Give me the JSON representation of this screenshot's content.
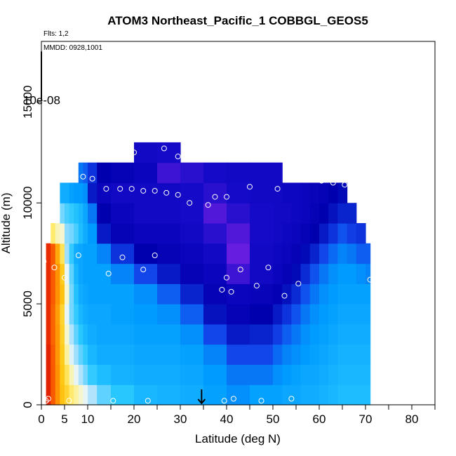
{
  "chart_data": {
    "type": "heatmap",
    "title": "ATOM3 Northeast_Pacific_1 COBBGL_GEOS5",
    "flights_label": "Flts: 1,2",
    "dates_label": "MMDD: 0928,1001",
    "xlabel": "Latitude (deg N)",
    "ylabel": "Altitude (m)",
    "xlim": [
      0,
      85
    ],
    "ylim": [
      0,
      18000
    ],
    "x_ticks": [
      0,
      5,
      10,
      20,
      30,
      40,
      50,
      60,
      70,
      80
    ],
    "x_tick_labels": [
      "0",
      "5",
      "10",
      "20",
      "30",
      "40",
      "50",
      "60",
      "70",
      "80"
    ],
    "x_minor_ticks": [
      15,
      25,
      35,
      45,
      55,
      65,
      75,
      85
    ],
    "y_ticks": [
      0,
      5000,
      10000,
      15000
    ],
    "y_tick_labels": [
      "0",
      "5000",
      "10000",
      "15000"
    ],
    "scale_label": "10e-08",
    "scale_bar_range": [
      15100,
      17500
    ],
    "marker_arrow_latitude": 34.6,
    "columns": [
      {
        "lat0": 1,
        "lat1": 2,
        "top": 8000,
        "values": [
          0.96,
          0.96,
          0.96,
          0.95,
          0.95,
          0.95,
          0.95,
          0.95
        ]
      },
      {
        "lat0": 2,
        "lat1": 3,
        "top": 9000,
        "values": [
          0.9,
          0.9,
          0.9,
          0.89,
          0.89,
          0.9,
          0.9,
          0.9,
          0.66
        ]
      },
      {
        "lat0": 3,
        "lat1": 4,
        "top": 9000,
        "values": [
          0.84,
          0.84,
          0.83,
          0.83,
          0.82,
          0.84,
          0.84,
          0.8,
          0.6
        ]
      },
      {
        "lat0": 4,
        "lat1": 5,
        "top": 11000,
        "values": [
          0.76,
          0.75,
          0.74,
          0.73,
          0.72,
          0.76,
          0.74,
          0.68,
          0.58,
          0.42,
          0.3
        ]
      },
      {
        "lat0": 5,
        "lat1": 6,
        "top": 11000,
        "values": [
          0.72,
          0.68,
          0.62,
          0.58,
          0.54,
          0.58,
          0.54,
          0.46,
          0.44,
          0.38,
          0.3
        ]
      },
      {
        "lat0": 6,
        "lat1": 7,
        "top": 11000,
        "values": [
          0.66,
          0.6,
          0.53,
          0.48,
          0.42,
          0.42,
          0.4,
          0.36,
          0.42,
          0.36,
          0.28
        ]
      },
      {
        "lat0": 7,
        "lat1": 8,
        "top": 11000,
        "values": [
          0.62,
          0.54,
          0.46,
          0.4,
          0.36,
          0.34,
          0.32,
          0.3,
          0.38,
          0.34,
          0.27
        ]
      },
      {
        "lat0": 8,
        "lat1": 9,
        "top": 12000,
        "values": [
          0.58,
          0.48,
          0.4,
          0.35,
          0.32,
          0.3,
          0.29,
          0.29,
          0.33,
          0.32,
          0.27,
          0.24
        ]
      },
      {
        "lat0": 9,
        "lat1": 10,
        "top": 12000,
        "values": [
          0.54,
          0.42,
          0.36,
          0.32,
          0.3,
          0.29,
          0.28,
          0.28,
          0.3,
          0.29,
          0.26,
          0.22
        ]
      },
      {
        "lat0": 10,
        "lat1": 12,
        "top": 12000,
        "values": [
          0.48,
          0.36,
          0.32,
          0.3,
          0.29,
          0.28,
          0.28,
          0.28,
          0.27,
          0.24,
          0.15,
          0.18
        ]
      },
      {
        "lat0": 12,
        "lat1": 15,
        "top": 12000,
        "values": [
          0.4,
          0.33,
          0.3,
          0.29,
          0.29,
          0.28,
          0.28,
          0.25,
          0.15,
          0.12,
          0.08,
          0.12
        ]
      },
      {
        "lat0": 15,
        "lat1": 20,
        "top": 12000,
        "values": [
          0.35,
          0.31,
          0.3,
          0.29,
          0.28,
          0.28,
          0.25,
          0.18,
          0.1,
          0.08,
          0.06,
          0.1
        ]
      },
      {
        "lat0": 20,
        "lat1": 25,
        "top": 13000,
        "values": [
          0.32,
          0.3,
          0.29,
          0.28,
          0.27,
          0.26,
          0.2,
          0.12,
          0.08,
          0.06,
          0.06,
          0.08,
          0.06
        ]
      },
      {
        "lat0": 25,
        "lat1": 30,
        "top": 13000,
        "values": [
          0.31,
          0.3,
          0.29,
          0.28,
          0.26,
          0.22,
          0.15,
          0.1,
          0.08,
          0.06,
          0.06,
          0.03,
          0.05
        ]
      },
      {
        "lat0": 30,
        "lat1": 35,
        "top": 12000,
        "values": [
          0.3,
          0.29,
          0.28,
          0.26,
          0.22,
          0.16,
          0.1,
          0.08,
          0.06,
          0.05,
          0.05,
          0.04
        ]
      },
      {
        "lat0": 35,
        "lat1": 40,
        "top": 12000,
        "values": [
          0.28,
          0.27,
          0.25,
          0.2,
          0.14,
          0.1,
          0.08,
          0.06,
          0.04,
          0.02,
          0.04,
          0.05
        ]
      },
      {
        "lat0": 40,
        "lat1": 45,
        "top": 12000,
        "values": [
          0.26,
          0.24,
          0.2,
          0.15,
          0.1,
          0.08,
          0.03,
          0.01,
          0.02,
          0.04,
          0.05,
          0.06
        ]
      },
      {
        "lat0": 45,
        "lat1": 50,
        "top": 12000,
        "values": [
          0.28,
          0.24,
          0.2,
          0.16,
          0.12,
          0.09,
          0.06,
          0.06,
          0.05,
          0.05,
          0.06,
          0.06
        ]
      },
      {
        "lat0": 50,
        "lat1": 52,
        "top": 12000,
        "values": [
          0.28,
          0.26,
          0.23,
          0.19,
          0.15,
          0.11,
          0.08,
          0.07,
          0.06,
          0.06,
          0.06,
          0.06
        ]
      },
      {
        "lat0": 52,
        "lat1": 54,
        "top": 11000,
        "values": [
          0.29,
          0.27,
          0.25,
          0.22,
          0.18,
          0.14,
          0.1,
          0.08,
          0.07,
          0.06,
          0.07
        ]
      },
      {
        "lat0": 54,
        "lat1": 56,
        "top": 11000,
        "values": [
          0.29,
          0.28,
          0.26,
          0.24,
          0.21,
          0.17,
          0.13,
          0.1,
          0.08,
          0.07,
          0.07
        ]
      },
      {
        "lat0": 56,
        "lat1": 58,
        "top": 11000,
        "values": [
          0.3,
          0.29,
          0.27,
          0.26,
          0.24,
          0.21,
          0.17,
          0.13,
          0.1,
          0.08,
          0.08
        ]
      },
      {
        "lat0": 58,
        "lat1": 60,
        "top": 11000,
        "values": [
          0.3,
          0.29,
          0.28,
          0.27,
          0.26,
          0.24,
          0.21,
          0.16,
          0.12,
          0.1,
          0.09
        ]
      },
      {
        "lat0": 60,
        "lat1": 62,
        "top": 11000,
        "values": [
          0.31,
          0.3,
          0.29,
          0.28,
          0.27,
          0.26,
          0.24,
          0.2,
          0.15,
          0.12,
          0.1
        ]
      },
      {
        "lat0": 62,
        "lat1": 64,
        "top": 11000,
        "values": [
          0.32,
          0.31,
          0.3,
          0.29,
          0.28,
          0.27,
          0.26,
          0.23,
          0.18,
          0.14,
          0.12
        ]
      },
      {
        "lat0": 64,
        "lat1": 66,
        "top": 11000,
        "values": [
          0.33,
          0.32,
          0.31,
          0.3,
          0.29,
          0.28,
          0.27,
          0.25,
          0.21,
          0.16,
          0.13
        ]
      },
      {
        "lat0": 66,
        "lat1": 68,
        "top": 10000,
        "values": [
          0.33,
          0.32,
          0.31,
          0.3,
          0.29,
          0.28,
          0.27,
          0.24,
          0.19,
          0.16
        ]
      },
      {
        "lat0": 68,
        "lat1": 70,
        "top": 9000,
        "values": [
          0.33,
          0.32,
          0.31,
          0.3,
          0.29,
          0.28,
          0.26,
          0.22,
          0.18
        ]
      },
      {
        "lat0": 70,
        "lat1": 71,
        "top": 8000,
        "values": [
          0.33,
          0.32,
          0.31,
          0.3,
          0.29,
          0.28,
          0.25,
          0.22
        ]
      }
    ],
    "points": [
      {
        "lat": 0.5,
        "alt": 7100
      },
      {
        "lat": 1.0,
        "alt": 200
      },
      {
        "lat": 1.5,
        "alt": 300
      },
      {
        "lat": 2.5,
        "alt": 11900
      },
      {
        "lat": 2.8,
        "alt": 6800
      },
      {
        "lat": 4.0,
        "alt": 11300
      },
      {
        "lat": 5.0,
        "alt": 6300
      },
      {
        "lat": 6.0,
        "alt": 11300
      },
      {
        "lat": 6.0,
        "alt": 200
      },
      {
        "lat": 8.0,
        "alt": 7400
      },
      {
        "lat": 9.0,
        "alt": 11300
      },
      {
        "lat": 11.0,
        "alt": 11200
      },
      {
        "lat": 11.5,
        "alt": 12400
      },
      {
        "lat": 14.0,
        "alt": 10700
      },
      {
        "lat": 14.5,
        "alt": 6500
      },
      {
        "lat": 15.5,
        "alt": 200
      },
      {
        "lat": 17.0,
        "alt": 10700
      },
      {
        "lat": 17.5,
        "alt": 7300
      },
      {
        "lat": 19.5,
        "alt": 10700
      },
      {
        "lat": 20.0,
        "alt": 12500
      },
      {
        "lat": 22.0,
        "alt": 10600
      },
      {
        "lat": 22.0,
        "alt": 6700
      },
      {
        "lat": 23.0,
        "alt": 200
      },
      {
        "lat": 24.5,
        "alt": 10600
      },
      {
        "lat": 24.5,
        "alt": 7400
      },
      {
        "lat": 26.5,
        "alt": 12700
      },
      {
        "lat": 27.0,
        "alt": 10500
      },
      {
        "lat": 29.5,
        "alt": 12300
      },
      {
        "lat": 29.5,
        "alt": 10400
      },
      {
        "lat": 32.0,
        "alt": 10000
      },
      {
        "lat": 36.0,
        "alt": 9900
      },
      {
        "lat": 37.5,
        "alt": 10300
      },
      {
        "lat": 39.0,
        "alt": 5700
      },
      {
        "lat": 39.5,
        "alt": 200
      },
      {
        "lat": 40.0,
        "alt": 6300
      },
      {
        "lat": 40.0,
        "alt": 10300
      },
      {
        "lat": 41.0,
        "alt": 5600
      },
      {
        "lat": 41.5,
        "alt": 300
      },
      {
        "lat": 43.0,
        "alt": 6700
      },
      {
        "lat": 45.0,
        "alt": 10800
      },
      {
        "lat": 46.5,
        "alt": 5900
      },
      {
        "lat": 47.5,
        "alt": 200
      },
      {
        "lat": 49.0,
        "alt": 6800
      },
      {
        "lat": 51.0,
        "alt": 10700
      },
      {
        "lat": 52.5,
        "alt": 5400
      },
      {
        "lat": 54.0,
        "alt": 300
      },
      {
        "lat": 55.5,
        "alt": 6000
      },
      {
        "lat": 58.5,
        "alt": 11200
      },
      {
        "lat": 60.5,
        "alt": 11100
      },
      {
        "lat": 63.0,
        "alt": 11000
      },
      {
        "lat": 65.5,
        "alt": 10900
      },
      {
        "lat": 68.5,
        "alt": 10800
      },
      {
        "lat": 71.0,
        "alt": 6200
      }
    ]
  }
}
